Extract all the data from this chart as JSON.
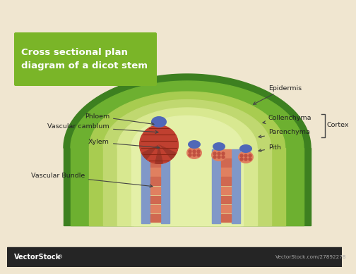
{
  "bg_color": "#f0e6d0",
  "title_box_color": "#7ab528",
  "title_text": "Cross sectional plan\ndiagram of a dicot stem",
  "title_text_color": "#ffffff",
  "dark_green": "#3d8020",
  "medium_green": "#6db030",
  "light_green": "#a8cc50",
  "lighter_green": "#c0d870",
  "pale_green": "#d8e890",
  "paler_green": "#e4f0a8",
  "xylem_color": "#c04030",
  "phloem_color": "#5068b8",
  "vb_red": "#e08060",
  "vb_blue": "#8098c8",
  "footer_bg": "#252525",
  "footer_text": "VectorStock",
  "footer_reg": "®",
  "footer_url": "VectorStock.com/27892278"
}
